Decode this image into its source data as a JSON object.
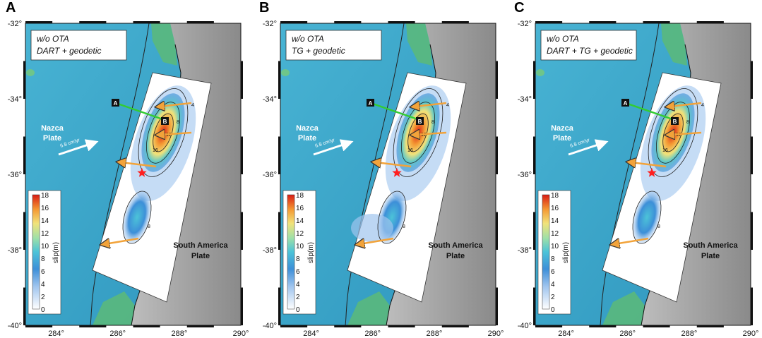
{
  "panels": [
    {
      "letter": "A",
      "label_line1": "w/o OTA",
      "label_line2": "DART + geodetic"
    },
    {
      "letter": "B",
      "label_line1": "w/o OTA",
      "label_line2": "TG + geodetic"
    },
    {
      "letter": "C",
      "label_line1": "w/o OTA",
      "label_line2": "DART + TG + geodetic"
    }
  ],
  "axes": {
    "lat_ticks": [
      "-32°",
      "-34°",
      "-36°",
      "-38°",
      "-40°"
    ],
    "lon_ticks": [
      "284°",
      "286°",
      "288°",
      "290°"
    ]
  },
  "labels": {
    "nazca_line1": "Nazca",
    "nazca_line2": "Plate",
    "sa_line1": "South America",
    "sa_line2": "Plate",
    "velocity": "6.8 cm/yr",
    "profile_start": "A",
    "profile_end": "B"
  },
  "colorbar": {
    "title": "slip(m)",
    "ticks": [
      "18",
      "16",
      "14",
      "12",
      "10",
      "8",
      "6",
      "4",
      "2",
      "0"
    ]
  },
  "contour_labels": [
    "4",
    "8",
    "12",
    "16"
  ],
  "colors": {
    "ocean": "#3aa6c9",
    "land": "#9c9c9c",
    "arrow": "#f2a33a",
    "profile": "#33cc33",
    "epicenter": "#ff2020"
  }
}
